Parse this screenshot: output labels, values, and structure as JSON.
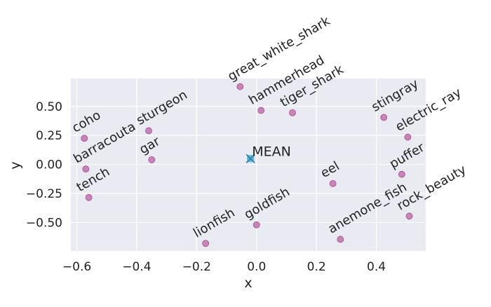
{
  "chart_data": {
    "type": "scatter",
    "title": "",
    "xlabel": "x",
    "ylabel": "y",
    "xlim": [
      -0.62,
      0.565
    ],
    "ylim": [
      -0.745,
      0.74
    ],
    "xticks": [
      -0.6,
      -0.4,
      -0.2,
      0.0,
      0.2,
      0.4
    ],
    "xtick_labels": [
      "−0.6",
      "−0.4",
      "−0.2",
      "0.0",
      "0.2",
      "0.4"
    ],
    "yticks": [
      -0.5,
      -0.25,
      0.0,
      0.25,
      0.5
    ],
    "ytick_labels": [
      "−0.50",
      "−0.25",
      "0.00",
      "0.25",
      "0.50"
    ],
    "grid": true,
    "point_color": "#c884b8",
    "point_edge": "#a0508c",
    "mean_color": "#4aa8d0",
    "points": [
      {
        "label": "great_white_shark",
        "x": -0.055,
        "y": 0.67
      },
      {
        "label": "hammerhead",
        "x": 0.015,
        "y": 0.465
      },
      {
        "label": "tiger_shark",
        "x": 0.12,
        "y": 0.445
      },
      {
        "label": "stingray",
        "x": 0.425,
        "y": 0.405
      },
      {
        "label": "electric_ray",
        "x": 0.505,
        "y": 0.235
      },
      {
        "label": "coho",
        "x": -0.575,
        "y": 0.225
      },
      {
        "label": "sturgeon",
        "x": -0.36,
        "y": 0.29
      },
      {
        "label": "barracouta",
        "x": -0.57,
        "y": -0.04
      },
      {
        "label": "gar",
        "x": -0.35,
        "y": 0.04
      },
      {
        "label": "eel",
        "x": 0.255,
        "y": -0.165
      },
      {
        "label": "puffer",
        "x": 0.485,
        "y": -0.085
      },
      {
        "label": "tench",
        "x": -0.56,
        "y": -0.285
      },
      {
        "label": "lionfish",
        "x": -0.17,
        "y": -0.68
      },
      {
        "label": "goldfish",
        "x": 0.0,
        "y": -0.52
      },
      {
        "label": "anemone_fish",
        "x": 0.28,
        "y": -0.645
      },
      {
        "label": "rock_beauty",
        "x": 0.51,
        "y": -0.445
      }
    ],
    "mean": {
      "label": "MEAN",
      "x": -0.02,
      "y": 0.05
    }
  }
}
